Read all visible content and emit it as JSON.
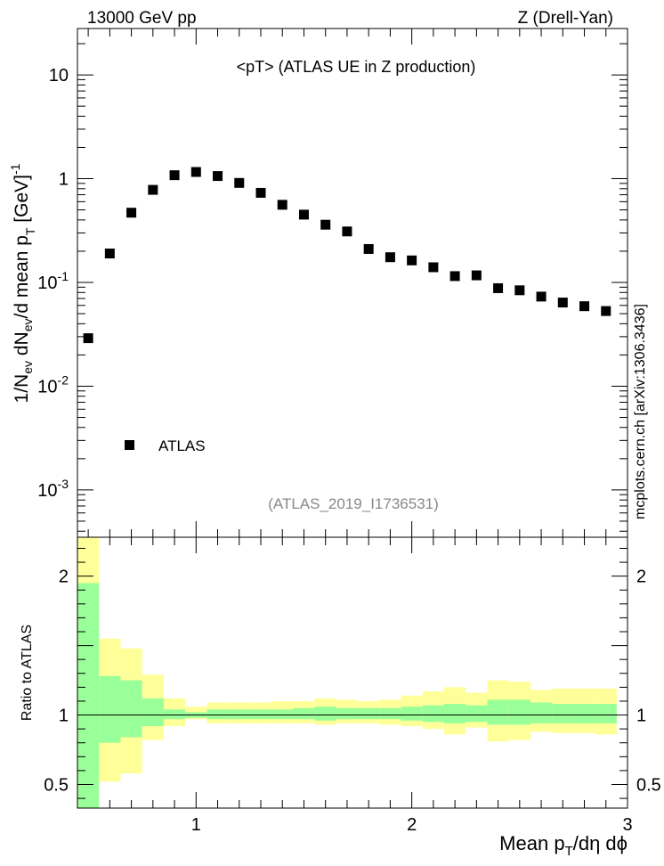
{
  "header": {
    "left": "13000 GeV pp",
    "right": "Z (Drell-Yan)"
  },
  "side_label": "mcplots.cern.ch [arXiv:1306.3436]",
  "colors": {
    "band_inner": "#99ff99",
    "band_outer": "#ffff99",
    "marker": "#000000",
    "ref_label": "#888888",
    "side_label": "#888888"
  },
  "chart_data": [
    {
      "type": "scatter",
      "panel": "main",
      "title": "<pT> (ATLAS UE in Z production)",
      "reference": "(ATLAS_2019_I1736531)",
      "ylabel_parts": {
        "p1": "1/N",
        "s1": "ev",
        "p2": " dN",
        "s2": "ev",
        "p3": "/d mean p",
        "s3": "T",
        "p4": " [GeV]",
        "sup": "-1"
      },
      "yscale": "log",
      "xlim": [
        0.45,
        3.0
      ],
      "ylim": [
        0.00035,
        28
      ],
      "yticks": [
        {
          "base": "10",
          "exp": "-3",
          "value": 0.001
        },
        {
          "base": "10",
          "exp": "-2",
          "value": 0.01
        },
        {
          "base": "10",
          "exp": "-1",
          "value": 0.1
        },
        {
          "base": "1",
          "exp": "",
          "value": 1
        },
        {
          "base": "10",
          "exp": "",
          "value": 10
        }
      ],
      "legend": {
        "label": "ATLAS",
        "position": "lower-left"
      },
      "series": [
        {
          "name": "ATLAS",
          "marker": "square",
          "x": [
            0.5,
            0.6,
            0.7,
            0.8,
            0.9,
            1.0,
            1.1,
            1.2,
            1.3,
            1.4,
            1.5,
            1.6,
            1.7,
            1.8,
            1.9,
            2.0,
            2.1,
            2.2,
            2.3,
            2.4,
            2.5,
            2.6,
            2.7,
            2.8,
            2.9
          ],
          "y": [
            0.029,
            0.19,
            0.47,
            0.78,
            1.08,
            1.16,
            1.06,
            0.91,
            0.73,
            0.56,
            0.45,
            0.36,
            0.31,
            0.21,
            0.175,
            0.163,
            0.14,
            0.115,
            0.117,
            0.088,
            0.084,
            0.073,
            0.064,
            0.059,
            0.053
          ]
        }
      ]
    },
    {
      "type": "area",
      "panel": "ratio",
      "ylabel": "Ratio to ATLAS",
      "xlabel_parts": {
        "p1": "Mean p",
        "s1": "T",
        "p2": "/dη dϕ"
      },
      "xlim": [
        0.45,
        3.0
      ],
      "ylim": [
        0.33,
        2.28
      ],
      "xticks": [
        {
          "label": "1",
          "value": 1
        },
        {
          "label": "2",
          "value": 2
        },
        {
          "label": "3",
          "value": 3
        }
      ],
      "yticks": [
        {
          "label": "0.5",
          "value": 0.5
        },
        {
          "label": "1",
          "value": 1
        },
        {
          "label": "2",
          "value": 2
        }
      ],
      "bin_edges": [
        0.45,
        0.55,
        0.65,
        0.75,
        0.85,
        0.95,
        1.05,
        1.15,
        1.25,
        1.35,
        1.45,
        1.55,
        1.65,
        1.75,
        1.85,
        1.95,
        2.05,
        2.15,
        2.25,
        2.35,
        2.45,
        2.55,
        2.65,
        2.75,
        2.85,
        2.95
      ],
      "inner_band": {
        "low": [
          0.33,
          0.8,
          0.84,
          0.92,
          0.97,
          0.98,
          0.97,
          0.97,
          0.97,
          0.97,
          0.97,
          0.96,
          0.97,
          0.97,
          0.97,
          0.96,
          0.95,
          0.94,
          0.95,
          0.93,
          0.93,
          0.94,
          0.94,
          0.94,
          0.94
        ],
        "high": [
          1.95,
          1.28,
          1.25,
          1.12,
          1.04,
          1.02,
          1.04,
          1.04,
          1.04,
          1.04,
          1.05,
          1.06,
          1.05,
          1.05,
          1.05,
          1.06,
          1.07,
          1.08,
          1.07,
          1.11,
          1.11,
          1.09,
          1.08,
          1.08,
          1.08
        ]
      },
      "outer_band": {
        "low": [
          0.33,
          0.52,
          0.58,
          0.82,
          0.92,
          0.97,
          0.94,
          0.94,
          0.94,
          0.94,
          0.94,
          0.93,
          0.94,
          0.94,
          0.93,
          0.92,
          0.9,
          0.86,
          0.91,
          0.81,
          0.82,
          0.88,
          0.87,
          0.87,
          0.86
        ],
        "high": [
          2.28,
          1.55,
          1.48,
          1.29,
          1.12,
          1.06,
          1.09,
          1.09,
          1.09,
          1.1,
          1.1,
          1.12,
          1.11,
          1.1,
          1.11,
          1.14,
          1.17,
          1.2,
          1.16,
          1.25,
          1.24,
          1.18,
          1.19,
          1.19,
          1.19
        ]
      },
      "reference_line": 1
    }
  ]
}
